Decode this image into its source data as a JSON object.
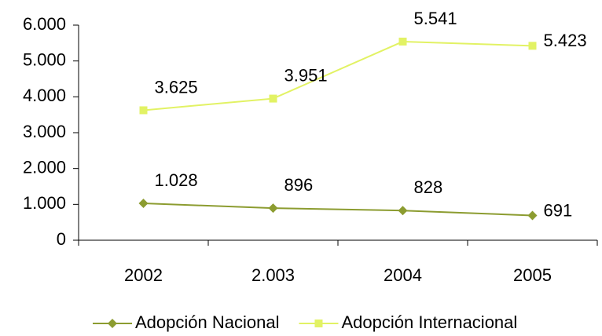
{
  "chart_data": {
    "type": "line",
    "categories": [
      "2002",
      "2.003",
      "2004",
      "2005"
    ],
    "series": [
      {
        "name": "Adopción Nacional",
        "color": "#8c9c30",
        "marker": "diamond",
        "values": [
          1028,
          896,
          828,
          691
        ],
        "value_labels": [
          "1.028",
          "896",
          "828",
          "691"
        ]
      },
      {
        "name": "Adopción Internacional",
        "color": "#e2f264",
        "marker": "square",
        "values": [
          3625,
          3951,
          5541,
          5423
        ],
        "value_labels": [
          "3.625",
          "3.951",
          "5.541",
          "5.423"
        ]
      }
    ],
    "ylim": [
      0,
      6000
    ],
    "yticks": [
      0,
      {
        "value": 1000,
        "label": "1.000"
      },
      {
        "value": 2000,
        "label": "2.000"
      },
      {
        "value": 3000,
        "label": "3.000"
      },
      {
        "value": 4000,
        "label": "4.000"
      },
      {
        "value": 5000,
        "label": "5.000"
      },
      {
        "value": 6000,
        "label": "6.000"
      }
    ],
    "grid": false,
    "legend": "bottom"
  }
}
